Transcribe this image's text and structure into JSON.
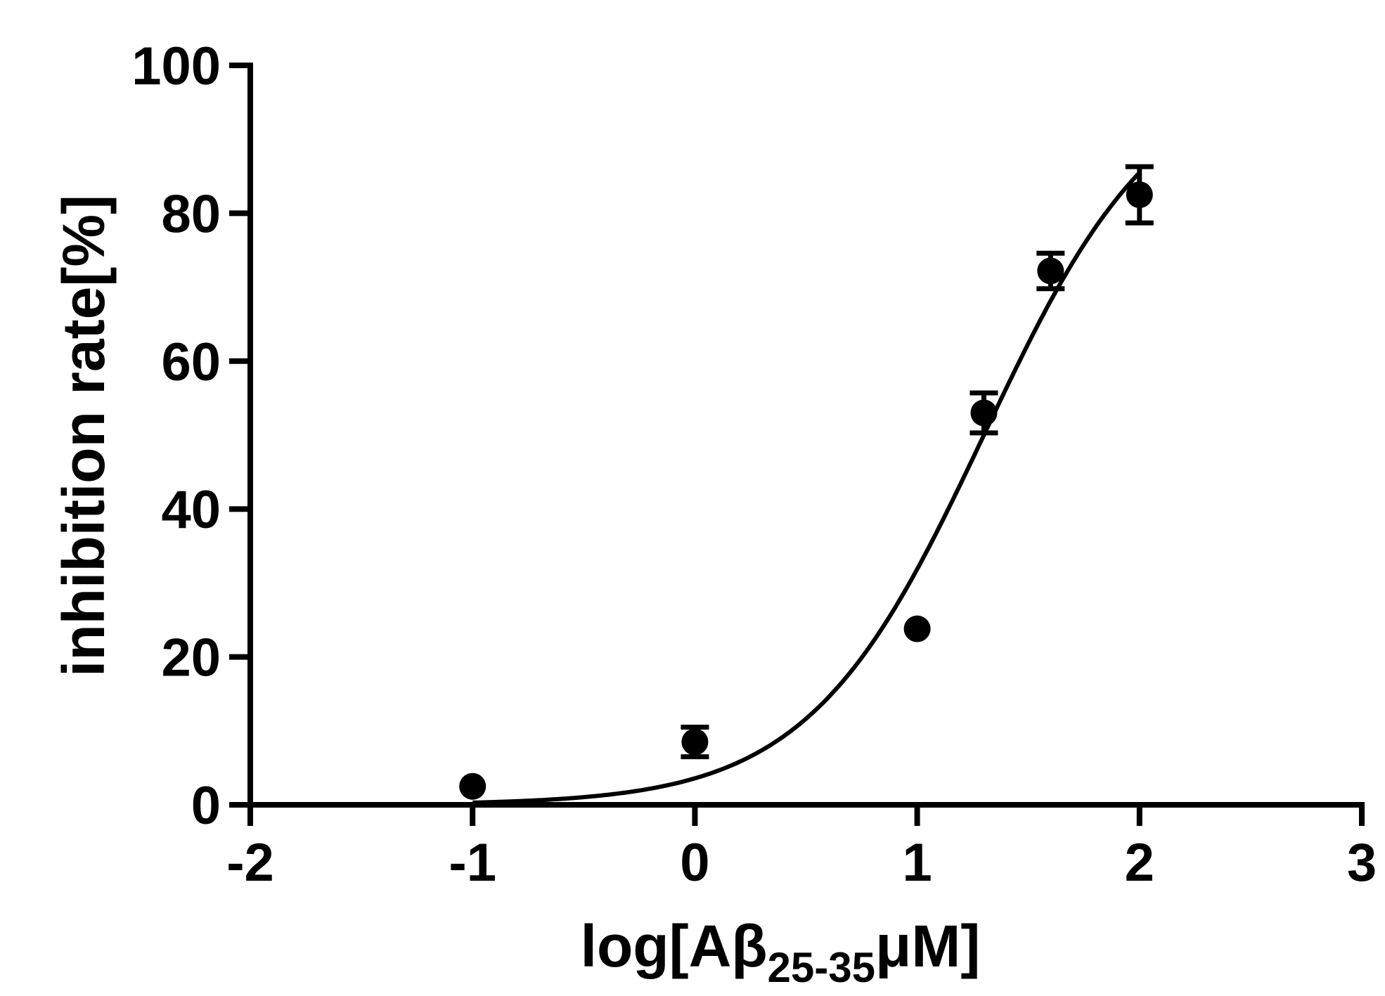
{
  "chart_data": {
    "type": "scatter",
    "title": "",
    "xlabel": {
      "main": "log[Aβ",
      "subscript": "25-35",
      "suffix": "μM]"
    },
    "ylabel": "inhibition rate[%]",
    "xlim": [
      -2,
      3
    ],
    "ylim": [
      0,
      100
    ],
    "x_ticks": [
      -2,
      -1,
      0,
      1,
      2,
      3
    ],
    "x_tick_labels": [
      "-2",
      "-1",
      "0",
      "1",
      "2",
      "3"
    ],
    "y_ticks": [
      0,
      20,
      40,
      60,
      80,
      100
    ],
    "y_tick_labels": [
      "0",
      "20",
      "40",
      "60",
      "80",
      "100"
    ],
    "grid": false,
    "legend": "none",
    "series": [
      {
        "points": [
          {
            "x": -1,
            "y": 2.5,
            "err": 0.8
          },
          {
            "x": 0,
            "y": 8.5,
            "err": 2
          },
          {
            "x": 1,
            "y": 23.8,
            "err": 0.8
          },
          {
            "x": 1.3,
            "y": 53,
            "err": 2.7
          },
          {
            "x": 1.6,
            "y": 72.2,
            "err": 2.4
          },
          {
            "x": 2,
            "y": 82.5,
            "err": 3.8
          }
        ]
      }
    ],
    "fit_curve": {
      "type": "sigmoid",
      "bottom": 0,
      "top": 100,
      "logEC50": 1.3,
      "hill": 1.1,
      "x_range": [
        -1,
        2
      ]
    },
    "colors": {
      "marks": "#000000",
      "background": "#ffffff"
    }
  }
}
